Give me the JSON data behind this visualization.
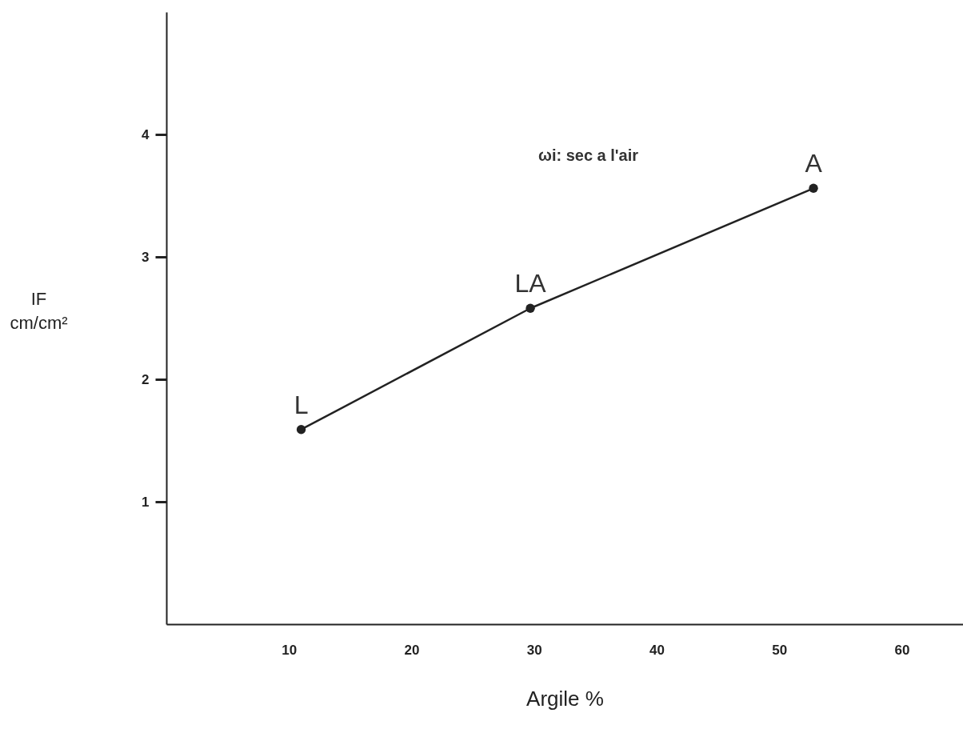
{
  "chart_data": {
    "type": "line",
    "xlabel": "Argile %",
    "ylabel": "IF\ncm/cm²",
    "x": [
      11.0,
      29.7,
      52.8
    ],
    "series": [
      {
        "color": "#222222",
        "values": [
          1.59,
          2.58,
          3.56
        ]
      }
    ],
    "xlim": [
      0,
      65
    ],
    "ylim": [
      0,
      5
    ],
    "xticks": [
      10,
      20,
      30,
      40,
      50,
      60
    ],
    "yticks": [
      1,
      2,
      3,
      4
    ],
    "marker": "circle",
    "line_style": "solid",
    "grid": false,
    "annotations": [
      "ωi:  sec  a l'air",
      {
        "text": "L",
        "x": 11.0,
        "y": 1.59
      },
      {
        "text": "LA",
        "x": 29.7,
        "y": 2.58
      },
      {
        "text": "A",
        "x": 52.8,
        "y": 3.56
      }
    ]
  }
}
